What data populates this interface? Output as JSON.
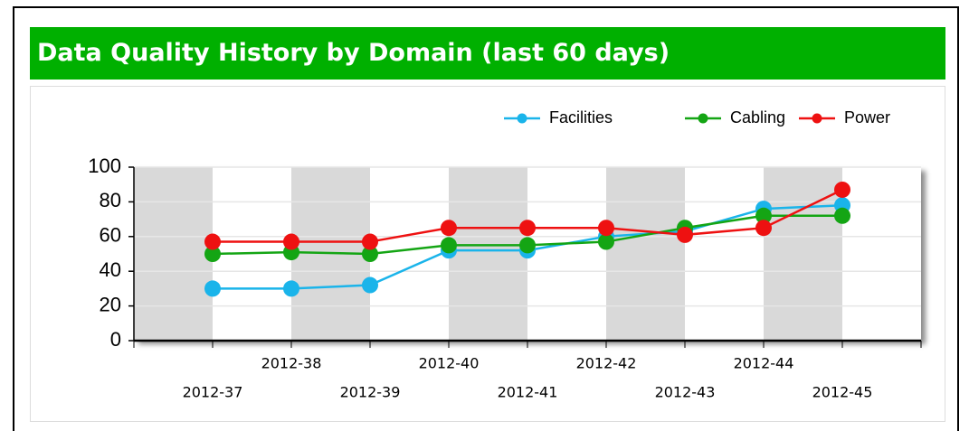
{
  "header": {
    "title": "Data Quality History by Domain (last 60 days)"
  },
  "chart_data": {
    "type": "line",
    "categories": [
      "2012-37",
      "2012-38",
      "2012-39",
      "2012-40",
      "2012-41",
      "2012-42",
      "2012-43",
      "2012-44",
      "2012-45"
    ],
    "series": [
      {
        "name": "Facilities",
        "color": "#1ab4ea",
        "values": [
          30,
          30,
          32,
          52,
          52,
          60,
          63,
          76,
          78
        ]
      },
      {
        "name": "Cabling",
        "color": "#14a514",
        "values": [
          50,
          51,
          50,
          55,
          55,
          57,
          65,
          72,
          72
        ]
      },
      {
        "name": "Power",
        "color": "#ee1111",
        "values": [
          57,
          57,
          57,
          65,
          65,
          65,
          61,
          65,
          87
        ]
      }
    ],
    "ylim": [
      0,
      100
    ],
    "yticks": [
      0,
      20,
      40,
      60,
      80,
      100
    ],
    "grid": true,
    "legend": "top-right"
  }
}
